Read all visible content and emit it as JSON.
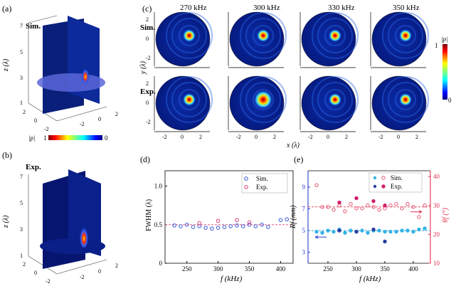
{
  "panels": {
    "a": {
      "label": "(a)",
      "tag": "Sim.",
      "z_axis_label": "z (λ)",
      "z_ticks": [
        "7",
        "5",
        "3",
        "1"
      ],
      "x_ticks": [
        "2",
        "0",
        "-2"
      ],
      "y_ticks": [
        "-2",
        "0",
        "2"
      ],
      "colorbar": {
        "label": "|p|",
        "max": "1",
        "min": "0"
      }
    },
    "b": {
      "label": "(b)",
      "tag": "Exp.",
      "z_axis_label": "z (λ)",
      "z_ticks": [
        "7",
        "5",
        "3",
        "1"
      ],
      "x_ticks": [
        "2",
        "0",
        "-2"
      ],
      "y_ticks": [
        "-2",
        "0",
        "2"
      ]
    },
    "c": {
      "label": "(c)",
      "frequencies": [
        "270 kHz",
        "300 kHz",
        "330 kHz",
        "350 kHz"
      ],
      "row_labels": [
        "Sim.",
        "Exp."
      ],
      "x_axis_label": "x (λ)",
      "y_axis_label": "y (λ)",
      "x_ticks": [
        "-2",
        "0",
        "2"
      ],
      "y_ticks": [
        "2",
        "0",
        "-2"
      ],
      "colorbar": {
        "label": "|p|",
        "max": "1",
        "min": "0"
      }
    },
    "d": {
      "label": "(d)"
    },
    "e": {
      "label": "(e)"
    }
  },
  "chart_data": [
    {
      "panel": "d",
      "type": "scatter",
      "xlabel": "f (kHz)",
      "ylabel": "FWHM (λ)",
      "xlim": [
        215,
        420
      ],
      "ylim": [
        0,
        1.2
      ],
      "xticks": [
        250,
        300,
        350,
        400
      ],
      "yticks": [
        0,
        0.5,
        1.0
      ],
      "ytick_labels": [
        "0",
        "0.5",
        "1.0"
      ],
      "reference_line": 0.5,
      "legend_position": "top-right",
      "series": [
        {
          "name": "Sim.",
          "color": "#3a5bd9",
          "x": [
            230,
            240,
            250,
            260,
            270,
            280,
            290,
            300,
            310,
            320,
            330,
            340,
            350,
            360,
            370,
            380,
            400,
            410
          ],
          "y": [
            0.49,
            0.48,
            0.5,
            0.47,
            0.48,
            0.46,
            0.45,
            0.46,
            0.47,
            0.48,
            0.49,
            0.48,
            0.5,
            0.48,
            0.5,
            0.47,
            0.56,
            0.57
          ]
        },
        {
          "name": "Exp.",
          "color": "#e0407a",
          "x": [
            270,
            300,
            330,
            350
          ],
          "y": [
            0.52,
            0.55,
            0.56,
            0.53
          ]
        }
      ]
    },
    {
      "panel": "e",
      "type": "scatter",
      "xlabel": "f (kHz)",
      "ylabel_left": "Rf (mm)",
      "ylabel_right": "θf (°)",
      "xlim": [
        215,
        430
      ],
      "ylim_left": [
        2,
        10.5
      ],
      "ylim_right": [
        10,
        42
      ],
      "xticks": [
        250,
        300,
        350,
        400
      ],
      "yticks_left": [
        3,
        5,
        7,
        9
      ],
      "yticks_right": [
        10,
        20,
        30,
        40
      ],
      "reference_left": 5,
      "reference_right": 29.5,
      "legend_position": "top-right",
      "series": [
        {
          "name": "Sim.",
          "axis": "left",
          "color": "#33b3e6",
          "filled": true,
          "x": [
            230,
            240,
            250,
            260,
            270,
            280,
            290,
            300,
            310,
            320,
            330,
            340,
            350,
            360,
            370,
            380,
            390,
            400,
            410,
            420
          ],
          "y": [
            4.9,
            4.8,
            5.0,
            4.9,
            5.1,
            4.8,
            5.0,
            4.9,
            5.0,
            4.8,
            5.0,
            5.0,
            4.9,
            4.9,
            4.9,
            5.0,
            5.0,
            4.9,
            5.1,
            5.2
          ]
        },
        {
          "name": "Exp.",
          "axis": "left",
          "color": "#2a3fa0",
          "filled": true,
          "x": [
            270,
            300,
            330,
            350
          ],
          "y": [
            5.0,
            4.9,
            5.1,
            4.0
          ]
        },
        {
          "name": "Sim.",
          "axis": "right",
          "color": "#e85570",
          "filled": false,
          "x": [
            230,
            240,
            250,
            260,
            270,
            280,
            290,
            300,
            310,
            320,
            330,
            340,
            350,
            360,
            370,
            380,
            390,
            400,
            410,
            420
          ],
          "y": [
            37,
            29.5,
            29.5,
            28.5,
            30,
            28,
            30.5,
            29,
            29,
            30,
            29.5,
            28.5,
            29,
            30,
            30.5,
            29,
            30.5,
            29.5,
            26,
            30
          ]
        },
        {
          "name": "Exp.",
          "axis": "right",
          "color": "#d0206a",
          "filled": true,
          "x": [
            270,
            300,
            330,
            350
          ],
          "y": [
            31,
            32.5,
            31.5,
            30
          ]
        }
      ]
    }
  ]
}
